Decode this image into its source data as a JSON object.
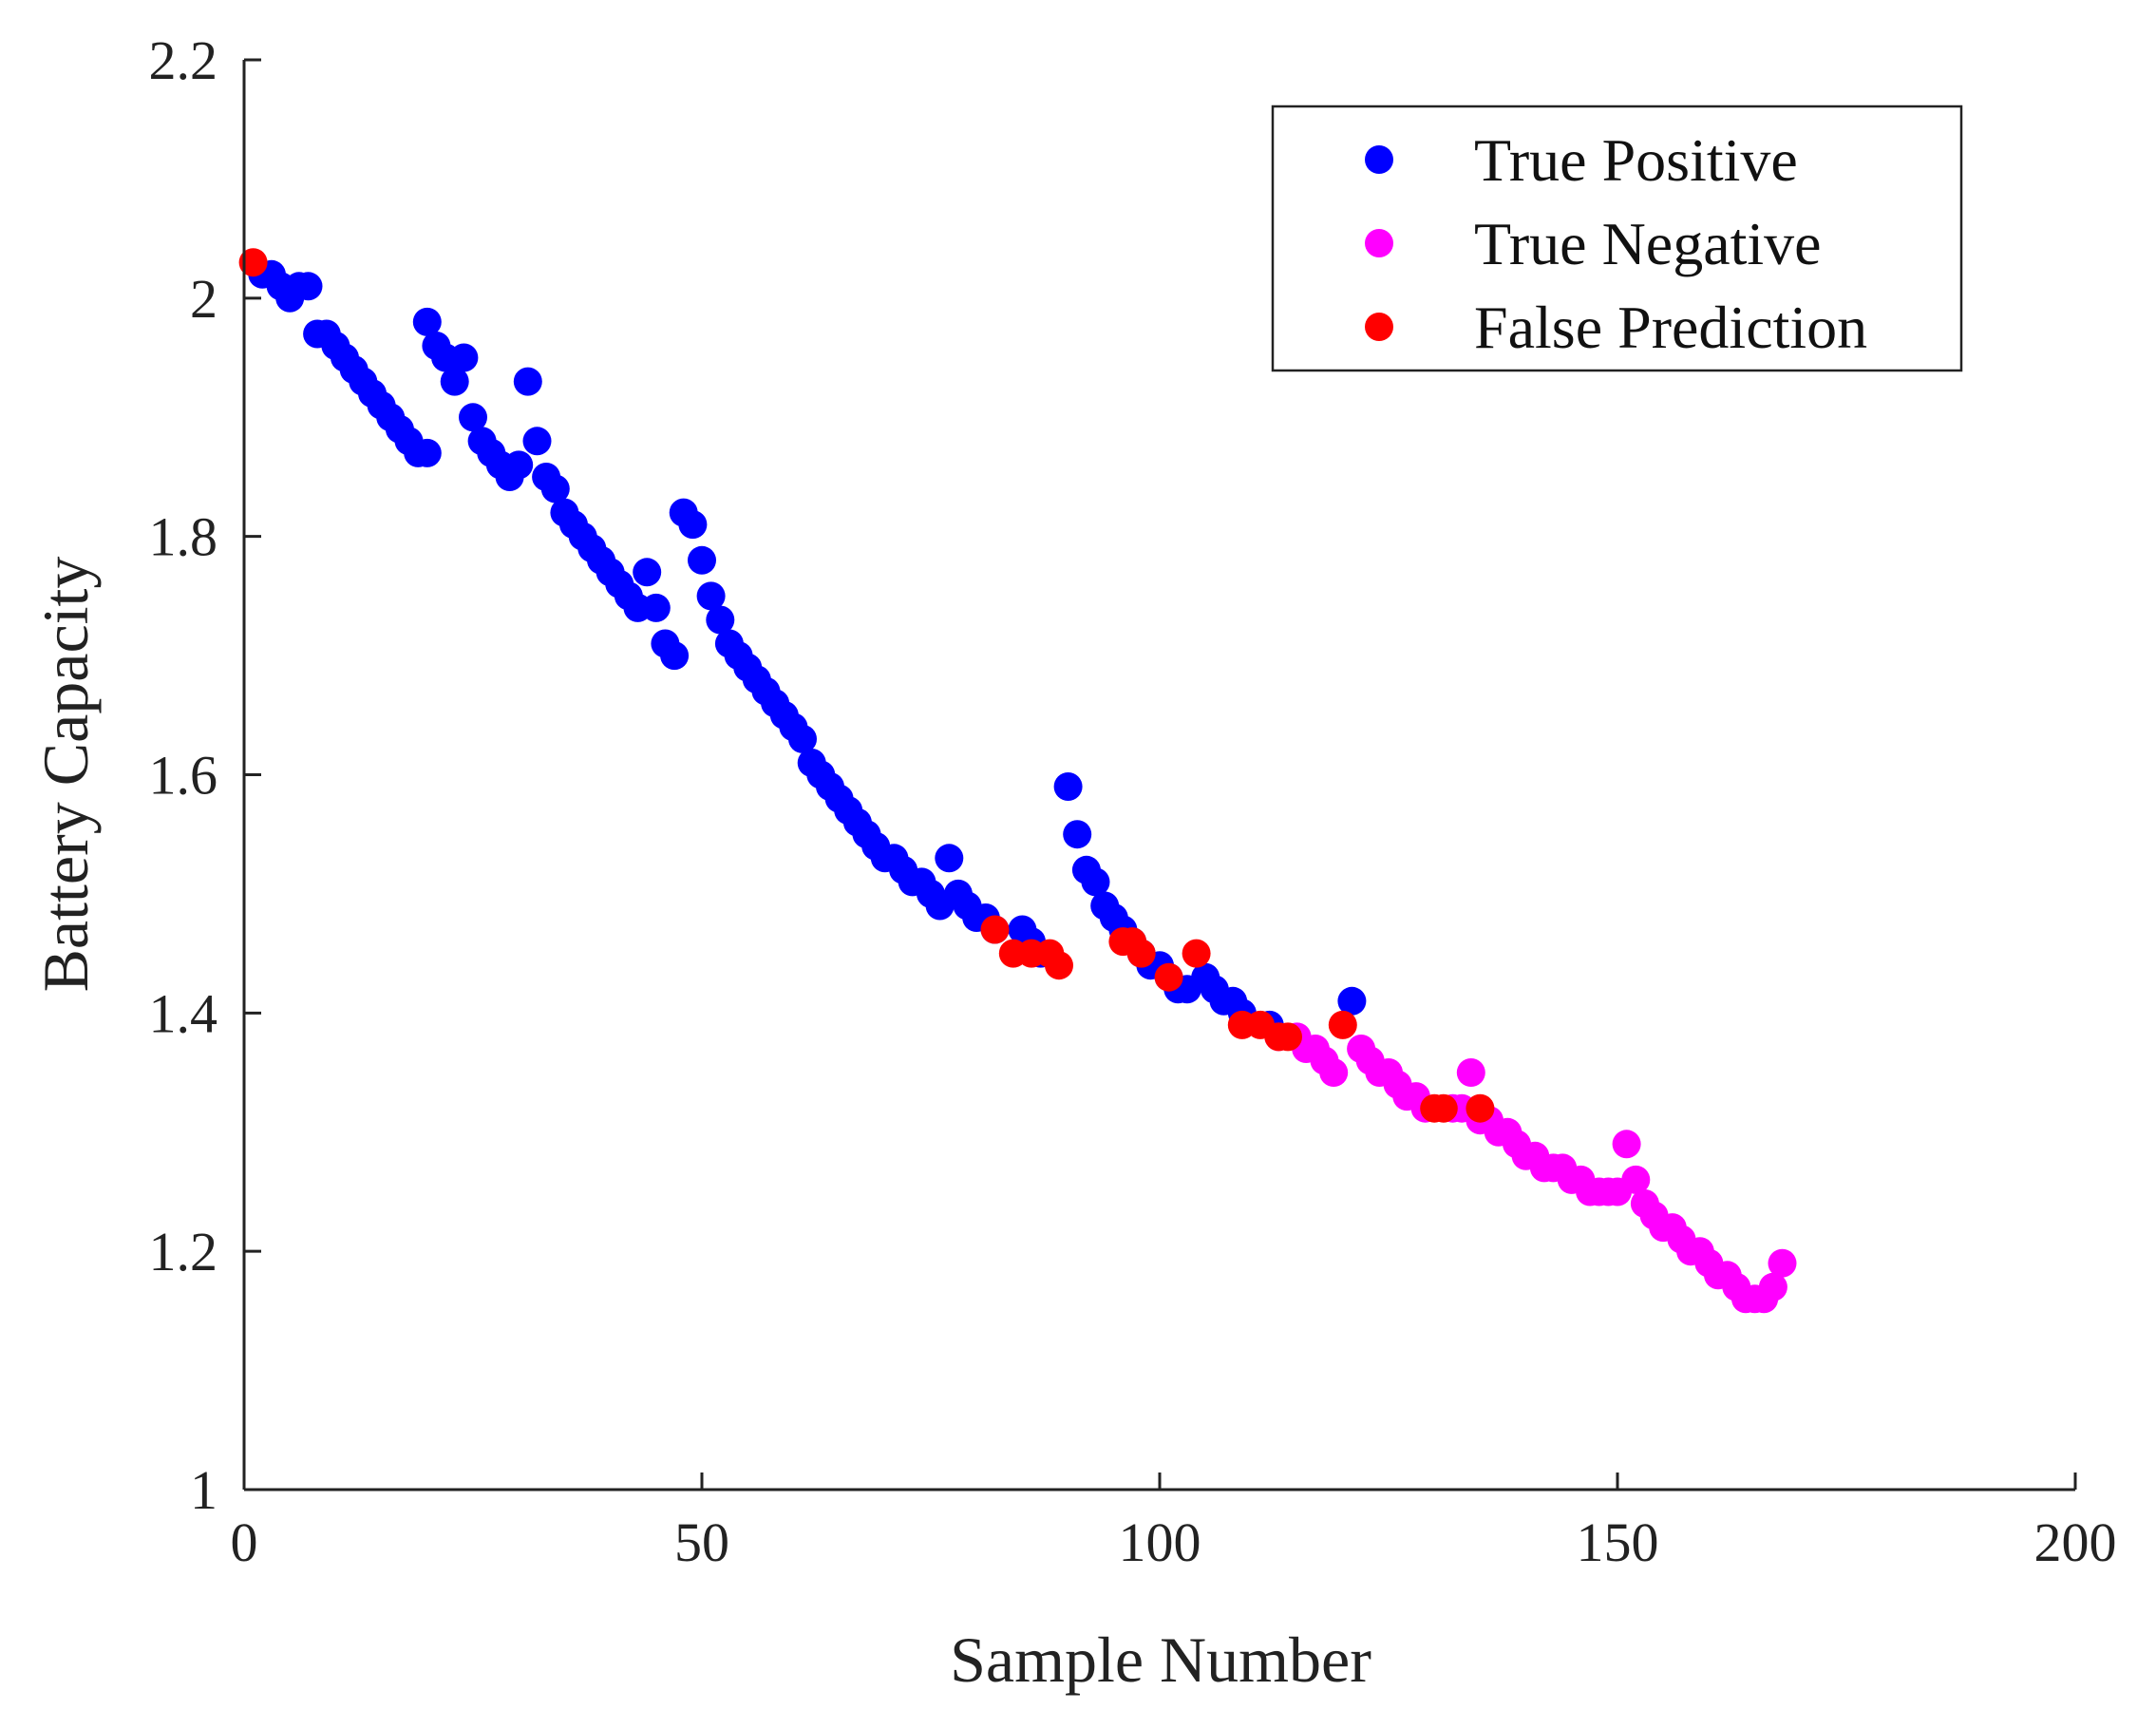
{
  "chart_data": {
    "type": "scatter",
    "title": "",
    "xlabel": "Sample Number",
    "ylabel": "Battery Capacity",
    "xlim": [
      0,
      200
    ],
    "ylim": [
      1,
      2.2
    ],
    "xticks": [
      "0",
      "50",
      "100",
      "150",
      "200"
    ],
    "yticks": [
      "1",
      "1.2",
      "1.4",
      "1.6",
      "1.8",
      "2",
      "2.2"
    ],
    "grid": false,
    "legend_position": "top-right",
    "series": [
      {
        "name": "True Positive",
        "color": "#0000ff",
        "points": [
          [
            2,
            2.02
          ],
          [
            3,
            2.02
          ],
          [
            4,
            2.01
          ],
          [
            5,
            2.0
          ],
          [
            6,
            2.01
          ],
          [
            7,
            2.01
          ],
          [
            8,
            1.97
          ],
          [
            9,
            1.97
          ],
          [
            10,
            1.96
          ],
          [
            11,
            1.95
          ],
          [
            12,
            1.94
          ],
          [
            13,
            1.93
          ],
          [
            14,
            1.92
          ],
          [
            15,
            1.91
          ],
          [
            16,
            1.9
          ],
          [
            17,
            1.89
          ],
          [
            18,
            1.88
          ],
          [
            19,
            1.87
          ],
          [
            20,
            1.87
          ],
          [
            20,
            1.98
          ],
          [
            21,
            1.96
          ],
          [
            22,
            1.95
          ],
          [
            23,
            1.93
          ],
          [
            24,
            1.95
          ],
          [
            25,
            1.9
          ],
          [
            26,
            1.88
          ],
          [
            27,
            1.87
          ],
          [
            28,
            1.86
          ],
          [
            29,
            1.85
          ],
          [
            30,
            1.86
          ],
          [
            31,
            1.93
          ],
          [
            32,
            1.88
          ],
          [
            33,
            1.85
          ],
          [
            34,
            1.84
          ],
          [
            35,
            1.82
          ],
          [
            36,
            1.81
          ],
          [
            37,
            1.8
          ],
          [
            38,
            1.79
          ],
          [
            39,
            1.78
          ],
          [
            40,
            1.77
          ],
          [
            41,
            1.76
          ],
          [
            42,
            1.75
          ],
          [
            43,
            1.74
          ],
          [
            44,
            1.77
          ],
          [
            45,
            1.74
          ],
          [
            46,
            1.71
          ],
          [
            47,
            1.7
          ],
          [
            48,
            1.82
          ],
          [
            49,
            1.81
          ],
          [
            50,
            1.78
          ],
          [
            51,
            1.75
          ],
          [
            52,
            1.73
          ],
          [
            53,
            1.71
          ],
          [
            54,
            1.7
          ],
          [
            55,
            1.69
          ],
          [
            56,
            1.68
          ],
          [
            57,
            1.67
          ],
          [
            58,
            1.66
          ],
          [
            59,
            1.65
          ],
          [
            60,
            1.64
          ],
          [
            61,
            1.63
          ],
          [
            62,
            1.61
          ],
          [
            63,
            1.6
          ],
          [
            64,
            1.59
          ],
          [
            65,
            1.58
          ],
          [
            66,
            1.57
          ],
          [
            67,
            1.56
          ],
          [
            68,
            1.55
          ],
          [
            69,
            1.54
          ],
          [
            70,
            1.53
          ],
          [
            71,
            1.53
          ],
          [
            72,
            1.52
          ],
          [
            73,
            1.51
          ],
          [
            74,
            1.51
          ],
          [
            75,
            1.5
          ],
          [
            76,
            1.49
          ],
          [
            77,
            1.53
          ],
          [
            78,
            1.5
          ],
          [
            79,
            1.49
          ],
          [
            80,
            1.48
          ],
          [
            81,
            1.48
          ],
          [
            82,
            1.47
          ],
          [
            85,
            1.47
          ],
          [
            86,
            1.46
          ],
          [
            87,
            1.45
          ],
          [
            90,
            1.59
          ],
          [
            91,
            1.55
          ],
          [
            92,
            1.52
          ],
          [
            93,
            1.51
          ],
          [
            94,
            1.49
          ],
          [
            95,
            1.48
          ],
          [
            96,
            1.47
          ],
          [
            97,
            1.46
          ],
          [
            98,
            1.45
          ],
          [
            99,
            1.44
          ],
          [
            100,
            1.44
          ],
          [
            101,
            1.43
          ],
          [
            102,
            1.42
          ],
          [
            103,
            1.42
          ],
          [
            105,
            1.43
          ],
          [
            106,
            1.42
          ],
          [
            107,
            1.41
          ],
          [
            108,
            1.41
          ],
          [
            109,
            1.4
          ],
          [
            112,
            1.39
          ],
          [
            121,
            1.41
          ]
        ]
      },
      {
        "name": "True Negative",
        "color": "#ff00ff",
        "points": [
          [
            113,
            1.38
          ],
          [
            115,
            1.38
          ],
          [
            116,
            1.37
          ],
          [
            117,
            1.37
          ],
          [
            118,
            1.36
          ],
          [
            119,
            1.35
          ],
          [
            122,
            1.37
          ],
          [
            123,
            1.36
          ],
          [
            124,
            1.35
          ],
          [
            125,
            1.35
          ],
          [
            126,
            1.34
          ],
          [
            127,
            1.33
          ],
          [
            128,
            1.33
          ],
          [
            129,
            1.32
          ],
          [
            132,
            1.32
          ],
          [
            133,
            1.32
          ],
          [
            134,
            1.35
          ],
          [
            135,
            1.31
          ],
          [
            136,
            1.31
          ],
          [
            137,
            1.3
          ],
          [
            138,
            1.3
          ],
          [
            139,
            1.29
          ],
          [
            140,
            1.28
          ],
          [
            141,
            1.28
          ],
          [
            142,
            1.27
          ],
          [
            143,
            1.27
          ],
          [
            144,
            1.27
          ],
          [
            145,
            1.26
          ],
          [
            146,
            1.26
          ],
          [
            147,
            1.25
          ],
          [
            148,
            1.25
          ],
          [
            149,
            1.25
          ],
          [
            150,
            1.25
          ],
          [
            151,
            1.29
          ],
          [
            152,
            1.26
          ],
          [
            153,
            1.24
          ],
          [
            154,
            1.23
          ],
          [
            155,
            1.22
          ],
          [
            156,
            1.22
          ],
          [
            157,
            1.21
          ],
          [
            158,
            1.2
          ],
          [
            159,
            1.2
          ],
          [
            160,
            1.19
          ],
          [
            161,
            1.18
          ],
          [
            162,
            1.18
          ],
          [
            163,
            1.17
          ],
          [
            164,
            1.16
          ],
          [
            165,
            1.16
          ],
          [
            166,
            1.16
          ],
          [
            167,
            1.17
          ],
          [
            168,
            1.19
          ]
        ]
      },
      {
        "name": "False Prediction",
        "color": "#ff0000",
        "points": [
          [
            1,
            2.03
          ],
          [
            82,
            1.47
          ],
          [
            84,
            1.45
          ],
          [
            86,
            1.45
          ],
          [
            88,
            1.45
          ],
          [
            89,
            1.44
          ],
          [
            96,
            1.46
          ],
          [
            97,
            1.46
          ],
          [
            98,
            1.45
          ],
          [
            101,
            1.43
          ],
          [
            104,
            1.45
          ],
          [
            109,
            1.39
          ],
          [
            111,
            1.39
          ],
          [
            113,
            1.38
          ],
          [
            114,
            1.38
          ],
          [
            120,
            1.39
          ],
          [
            130,
            1.32
          ],
          [
            131,
            1.32
          ],
          [
            135,
            1.32
          ]
        ]
      }
    ]
  }
}
